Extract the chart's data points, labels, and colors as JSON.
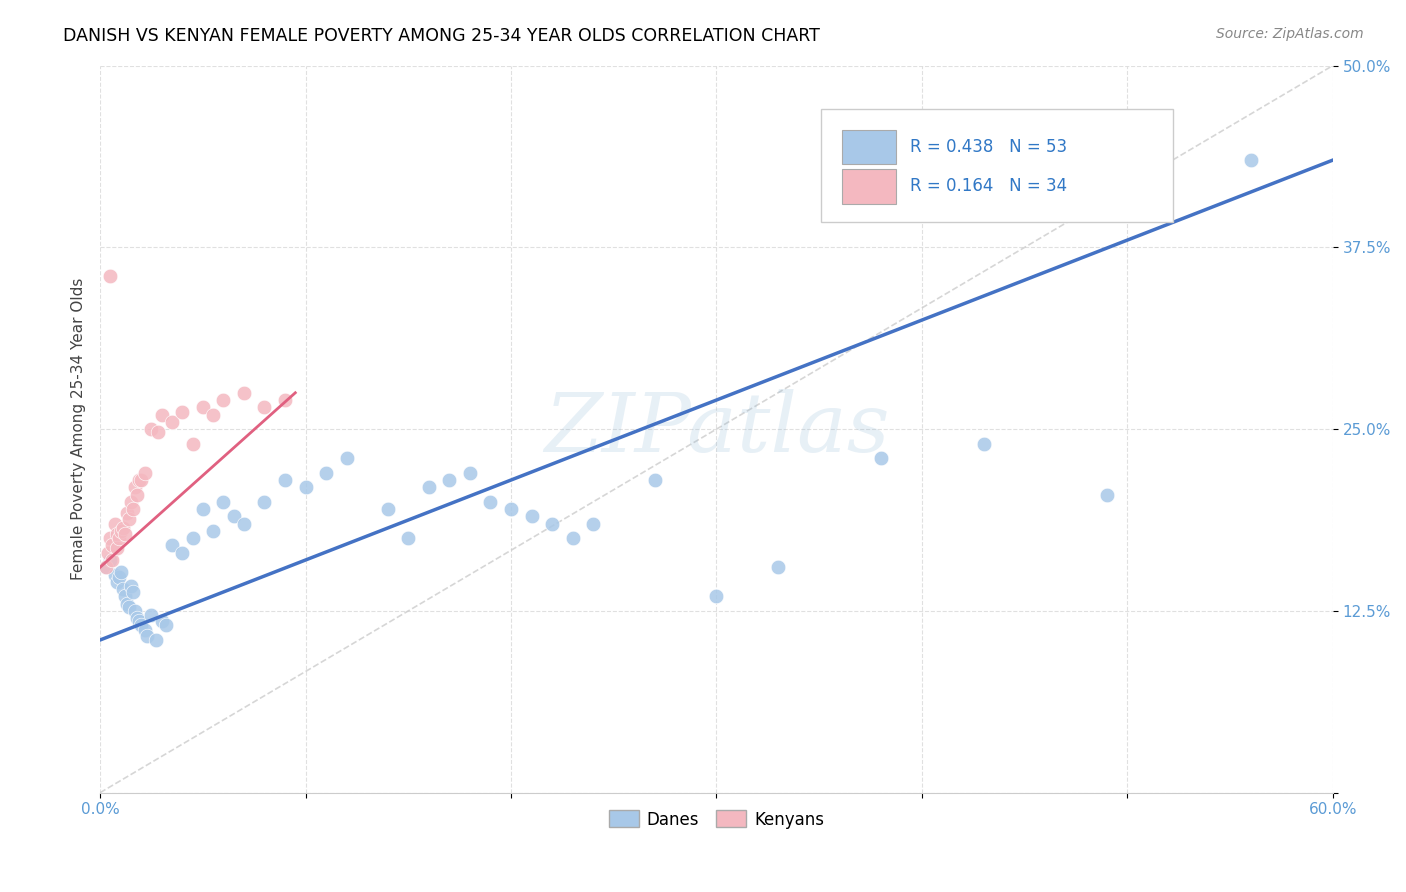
{
  "title": "DANISH VS KENYAN FEMALE POVERTY AMONG 25-34 YEAR OLDS CORRELATION CHART",
  "source": "Source: ZipAtlas.com",
  "ylabel": "Female Poverty Among 25-34 Year Olds",
  "xlim": [
    0.0,
    0.6
  ],
  "ylim": [
    0.0,
    0.5
  ],
  "xtick_vals": [
    0.0,
    0.1,
    0.2,
    0.3,
    0.4,
    0.5,
    0.6
  ],
  "xtick_labels": [
    "0.0%",
    "",
    "",
    "",
    "",
    "",
    "60.0%"
  ],
  "ytick_vals": [
    0.0,
    0.125,
    0.25,
    0.375,
    0.5
  ],
  "ytick_labels": [
    "",
    "12.5%",
    "25.0%",
    "37.5%",
    "50.0%"
  ],
  "watermark": "ZIPatlas",
  "legend_blue_R": "R = 0.438",
  "legend_blue_N": "N = 53",
  "legend_pink_R": "R = 0.164",
  "legend_pink_N": "N = 34",
  "blue_color": "#a8c8e8",
  "pink_color": "#f4b8c0",
  "blue_line_color": "#4472c4",
  "pink_line_color": "#e06080",
  "tick_color": "#5b9bd5",
  "danes_x": [
    0.003,
    0.005,
    0.007,
    0.008,
    0.009,
    0.01,
    0.011,
    0.012,
    0.013,
    0.014,
    0.015,
    0.016,
    0.017,
    0.018,
    0.019,
    0.02,
    0.022,
    0.023,
    0.025,
    0.027,
    0.03,
    0.032,
    0.035,
    0.04,
    0.045,
    0.05,
    0.055,
    0.06,
    0.065,
    0.07,
    0.08,
    0.09,
    0.1,
    0.11,
    0.12,
    0.14,
    0.15,
    0.16,
    0.17,
    0.18,
    0.19,
    0.2,
    0.21,
    0.22,
    0.23,
    0.24,
    0.27,
    0.3,
    0.33,
    0.38,
    0.43,
    0.49,
    0.56
  ],
  "danes_y": [
    0.155,
    0.16,
    0.15,
    0.145,
    0.148,
    0.152,
    0.14,
    0.135,
    0.13,
    0.128,
    0.142,
    0.138,
    0.125,
    0.12,
    0.118,
    0.115,
    0.112,
    0.108,
    0.122,
    0.105,
    0.118,
    0.115,
    0.17,
    0.165,
    0.175,
    0.195,
    0.18,
    0.2,
    0.19,
    0.185,
    0.2,
    0.215,
    0.21,
    0.22,
    0.23,
    0.195,
    0.175,
    0.21,
    0.215,
    0.22,
    0.2,
    0.195,
    0.19,
    0.185,
    0.175,
    0.185,
    0.215,
    0.135,
    0.155,
    0.23,
    0.24,
    0.205,
    0.435
  ],
  "kenyans_x": [
    0.003,
    0.004,
    0.005,
    0.006,
    0.006,
    0.007,
    0.008,
    0.008,
    0.009,
    0.01,
    0.011,
    0.012,
    0.013,
    0.014,
    0.015,
    0.016,
    0.017,
    0.018,
    0.019,
    0.02,
    0.022,
    0.025,
    0.028,
    0.03,
    0.035,
    0.04,
    0.045,
    0.05,
    0.055,
    0.06,
    0.07,
    0.08,
    0.09,
    0.005
  ],
  "kenyans_y": [
    0.155,
    0.165,
    0.175,
    0.17,
    0.16,
    0.185,
    0.178,
    0.168,
    0.175,
    0.18,
    0.182,
    0.178,
    0.192,
    0.188,
    0.2,
    0.195,
    0.21,
    0.205,
    0.215,
    0.215,
    0.22,
    0.25,
    0.248,
    0.26,
    0.255,
    0.262,
    0.24,
    0.265,
    0.26,
    0.27,
    0.275,
    0.265,
    0.27,
    0.355
  ],
  "blue_line_x": [
    0.0,
    0.6
  ],
  "blue_line_y": [
    0.105,
    0.435
  ],
  "pink_line_x": [
    0.0,
    0.095
  ],
  "pink_line_y": [
    0.155,
    0.275
  ]
}
